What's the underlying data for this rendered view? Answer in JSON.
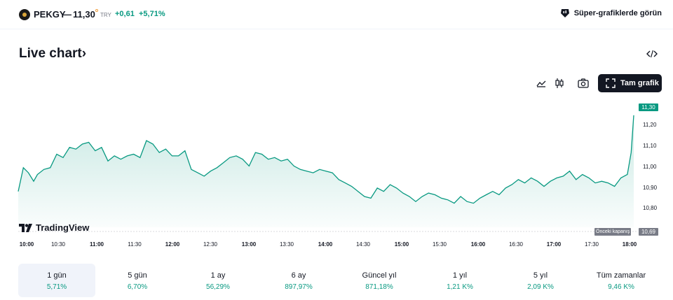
{
  "header": {
    "symbol": "PEKGY",
    "dash": "—",
    "price": "11,30",
    "currency": "TRY",
    "change": "+0,61",
    "change_pct": "+5,71%",
    "super_charts_label": "Süper-grafiklerde görün"
  },
  "title": "Live chart›",
  "toolbar": {
    "fullscreen_label": "Tam grafik"
  },
  "branding": {
    "tv_label": "TradingView"
  },
  "colors": {
    "accent": "#089981",
    "dark": "#131722",
    "muted": "#787b86"
  },
  "chart_data": {
    "type": "area",
    "x_ticks": [
      "10:00",
      "10:30",
      "11:00",
      "11:30",
      "12:00",
      "12:30",
      "13:00",
      "13:30",
      "14:00",
      "14:30",
      "15:00",
      "15:30",
      "16:00",
      "16:30",
      "17:00",
      "17:30",
      "18:00"
    ],
    "y_ticks": [
      "11,20",
      "11,10",
      "11,00",
      "10,90",
      "10,80"
    ],
    "ylim": [
      10.7,
      11.32
    ],
    "last_price_label": "11,30",
    "previous_close_label": "Önceki kapanış",
    "previous_close_value": "10,69",
    "series": [
      {
        "x": [
          0,
          4,
          8,
          12,
          15,
          20,
          25,
          30,
          35,
          40,
          45,
          50,
          55,
          60,
          65,
          70,
          75,
          80,
          85,
          90,
          95,
          100,
          105,
          110,
          115,
          120,
          125,
          130,
          135,
          140,
          145,
          150,
          155,
          160,
          165,
          170,
          175,
          180,
          185,
          190,
          195,
          200,
          205,
          210,
          215,
          220,
          225,
          230,
          235,
          240,
          245,
          250,
          255,
          260,
          265,
          270,
          275,
          280,
          285,
          290,
          295,
          300,
          305,
          310,
          315,
          320,
          325,
          330,
          335,
          340,
          345,
          350,
          355,
          360,
          365,
          370,
          375,
          380,
          385,
          390,
          395,
          400,
          405,
          410,
          415,
          420,
          425,
          430,
          435,
          440,
          445,
          450,
          455,
          460,
          465,
          470,
          475,
          478,
          480
        ],
        "y": [
          10.85,
          10.99,
          10.96,
          10.91,
          10.95,
          10.98,
          10.99,
          11.07,
          11.05,
          11.11,
          11.1,
          11.13,
          11.14,
          11.09,
          11.11,
          11.03,
          11.06,
          11.04,
          11.06,
          11.07,
          11.05,
          11.15,
          11.13,
          11.08,
          11.1,
          11.06,
          11.06,
          11.09,
          10.98,
          10.96,
          10.94,
          10.97,
          10.99,
          11.02,
          11.05,
          11.06,
          11.04,
          11.0,
          11.08,
          11.07,
          11.04,
          11.05,
          11.03,
          11.04,
          11.0,
          10.98,
          10.97,
          10.96,
          10.98,
          10.97,
          10.96,
          10.92,
          10.9,
          10.88,
          10.85,
          10.82,
          10.81,
          10.87,
          10.85,
          10.89,
          10.87,
          10.84,
          10.82,
          10.79,
          10.82,
          10.84,
          10.83,
          10.81,
          10.8,
          10.78,
          10.82,
          10.79,
          10.78,
          10.81,
          10.83,
          10.85,
          10.83,
          10.87,
          10.89,
          10.92,
          10.9,
          10.93,
          10.91,
          10.88,
          10.91,
          10.93,
          10.94,
          10.97,
          10.92,
          10.95,
          10.93,
          10.9,
          10.91,
          10.9,
          10.88,
          10.93,
          10.95,
          11.08,
          11.3
        ]
      }
    ]
  },
  "periods": [
    {
      "label": "1 gün",
      "value": "5,71%"
    },
    {
      "label": "5 gün",
      "value": "6,70%"
    },
    {
      "label": "1 ay",
      "value": "56,29%"
    },
    {
      "label": "6 ay",
      "value": "897,97%"
    },
    {
      "label": "Güncel yıl",
      "value": "871,18%"
    },
    {
      "label": "1 yıl",
      "value": "1,21 K%"
    },
    {
      "label": "5 yıl",
      "value": "2,09 K%"
    },
    {
      "label": "Tüm zamanlar",
      "value": "9,46 K%"
    }
  ]
}
